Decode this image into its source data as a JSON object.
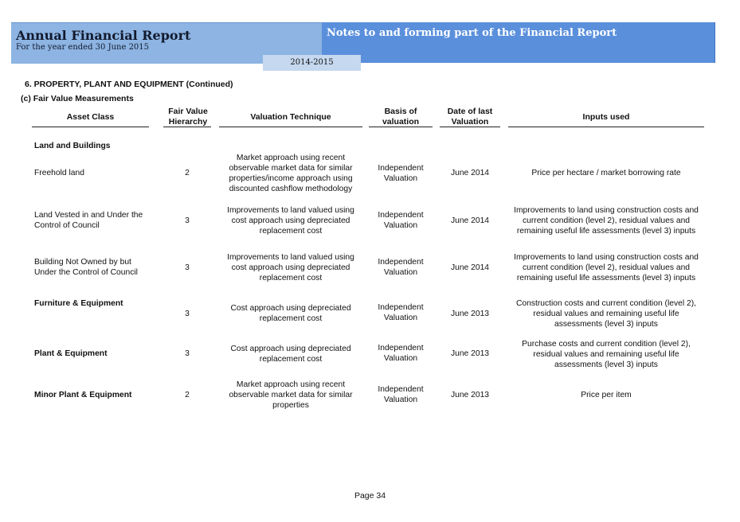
{
  "header": {
    "title": "Annual Financial Report",
    "subtitle": "For the year ended 30 June 2015",
    "notes_title": "Notes to and forming part of the Financial Report",
    "year_tab": "2014-2015"
  },
  "section_title": "6. PROPERTY, PLANT AND EQUIPMENT (Continued)",
  "subsection_title": "(c) Fair Value Measurements",
  "columns": {
    "asset_class": "Asset Class",
    "hierarchy": "Fair Value Hierarchy",
    "technique": "Valuation Technique",
    "basis": "Basis of valuation",
    "date": "Date of last Valuation",
    "inputs": "Inputs used"
  },
  "group_heading": "Land and Buildings",
  "rows": [
    {
      "asset": "Freehold land",
      "hierarchy": "2",
      "technique": "Market approach using recent observable market data for similar properties/income approach using discounted cashflow methodology",
      "basis": "Independent Valuation",
      "date": "June 2014",
      "inputs": "Price per hectare / market borrowing rate"
    },
    {
      "asset": "Land Vested in and Under the Control of Council",
      "hierarchy": "3",
      "technique": "Improvements to land valued using cost approach using depreciated replacement cost",
      "basis": "Independent Valuation",
      "date": "June 2014",
      "inputs": "Improvements to land using construction costs and current condition (level 2), residual values and remaining useful life assessments (level 3) inputs"
    },
    {
      "asset": "Building Not Owned by but Under the Control of Council",
      "hierarchy": "3",
      "technique": "Improvements to land valued using cost approach using depreciated replacement cost",
      "basis": "Independent Valuation",
      "date": "June 2014",
      "inputs": "Improvements to land using construction costs and current condition (level 2), residual values and remaining useful life assessments (level 3) inputs"
    },
    {
      "asset": "Furniture & Equipment",
      "hierarchy": "3",
      "technique": "Cost approach using depreciated replacement cost",
      "basis": "Independent Valuation",
      "date": "June 2013",
      "inputs": "Construction costs and current condition (level 2), residual values and remaining useful life assessments (level 3) inputs"
    },
    {
      "asset": "Plant & Equipment",
      "hierarchy": "3",
      "technique": "Cost approach using depreciated replacement cost",
      "basis": "Independent Valuation",
      "date": "June 2013",
      "inputs": "Purchase costs and current condition (level 2), residual values and remaining useful life assessments (level 3) inputs"
    },
    {
      "asset": "Minor Plant & Equipment",
      "hierarchy": "2",
      "technique": "Market approach using recent observable market data for similar properties",
      "basis": "Independent Valuation",
      "date": "June 2013",
      "inputs": "Price per item"
    }
  ],
  "footer": {
    "page": "Page 34"
  }
}
